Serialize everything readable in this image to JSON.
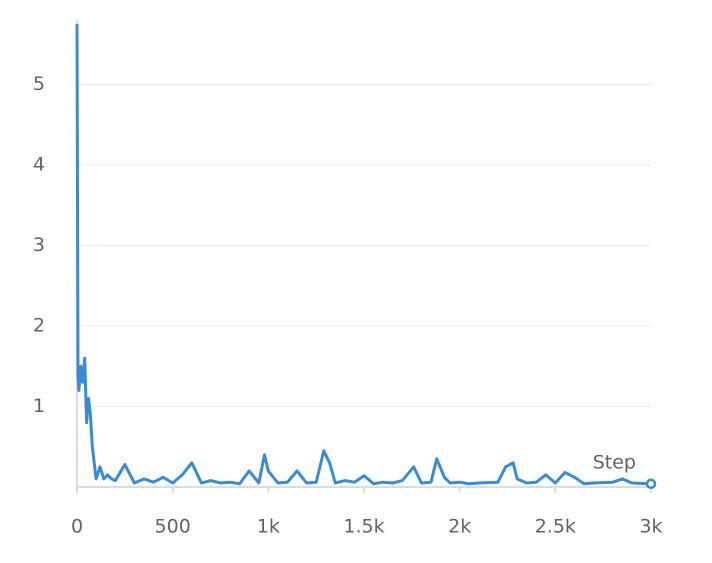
{
  "chart_data": {
    "type": "line",
    "axis_label": "Step",
    "color": "#3b8bd4",
    "grid": true,
    "x": [
      0,
      5,
      10,
      20,
      30,
      40,
      50,
      60,
      70,
      80,
      90,
      100,
      120,
      140,
      160,
      180,
      200,
      250,
      300,
      350,
      400,
      450,
      500,
      550,
      600,
      650,
      700,
      750,
      800,
      850,
      900,
      950,
      980,
      1000,
      1050,
      1100,
      1150,
      1200,
      1250,
      1290,
      1320,
      1350,
      1400,
      1450,
      1500,
      1550,
      1600,
      1650,
      1700,
      1760,
      1800,
      1850,
      1880,
      1920,
      1950,
      2000,
      2050,
      2100,
      2200,
      2240,
      2280,
      2300,
      2350,
      2400,
      2450,
      2500,
      2550,
      2600,
      2650,
      2700,
      2800,
      2850,
      2900,
      3000
    ],
    "values": [
      5.75,
      1.4,
      1.2,
      1.5,
      1.3,
      1.6,
      0.8,
      1.1,
      0.9,
      0.5,
      0.3,
      0.1,
      0.25,
      0.1,
      0.15,
      0.1,
      0.08,
      0.28,
      0.05,
      0.1,
      0.06,
      0.12,
      0.05,
      0.15,
      0.3,
      0.05,
      0.08,
      0.05,
      0.06,
      0.04,
      0.2,
      0.05,
      0.4,
      0.2,
      0.05,
      0.06,
      0.2,
      0.05,
      0.06,
      0.45,
      0.3,
      0.05,
      0.08,
      0.06,
      0.14,
      0.04,
      0.06,
      0.05,
      0.08,
      0.25,
      0.05,
      0.06,
      0.35,
      0.12,
      0.05,
      0.06,
      0.04,
      0.05,
      0.06,
      0.25,
      0.3,
      0.1,
      0.05,
      0.06,
      0.15,
      0.05,
      0.18,
      0.12,
      0.04,
      0.05,
      0.06,
      0.1,
      0.05,
      0.04
    ],
    "xlim": [
      0,
      3000
    ],
    "xticks": [
      0,
      500,
      {
        "value": 1000,
        "label": "1k"
      },
      {
        "value": 1500,
        "label": "1.5k"
      },
      {
        "value": 2000,
        "label": "2k"
      },
      {
        "value": 2500,
        "label": "2.5k"
      },
      {
        "value": 3000,
        "label": "3k"
      }
    ],
    "ylim": [
      0,
      5.8
    ],
    "yticks": [
      1,
      2,
      3,
      4,
      5
    ]
  }
}
